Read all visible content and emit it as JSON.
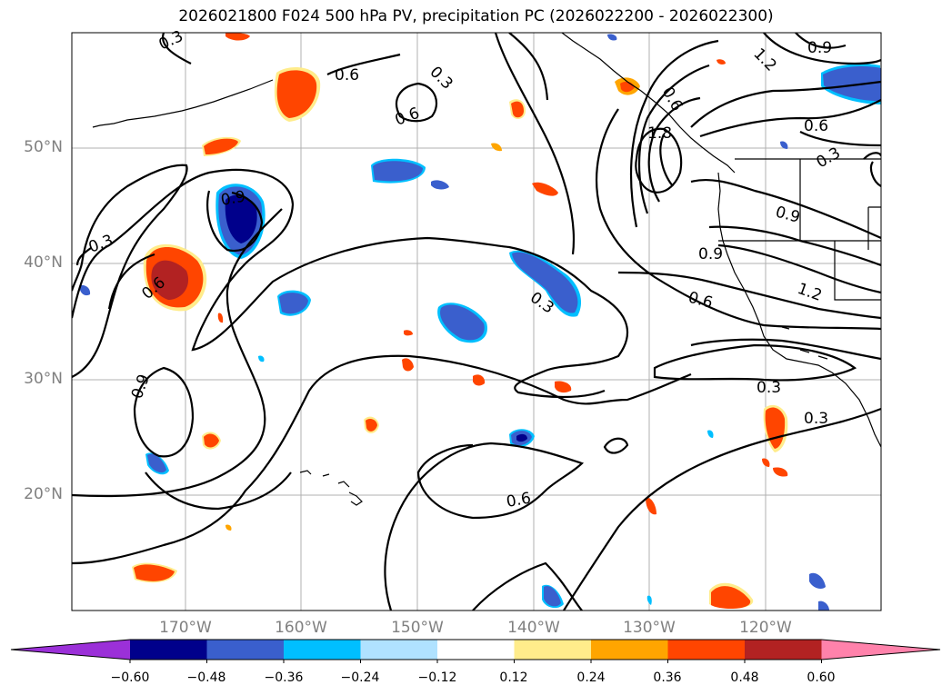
{
  "title": "2026021800 F024 500 hPa PV, precipitation PC (2026022200 - 2026022300)",
  "lat_labels": [
    "50°N",
    "40°N",
    "30°N",
    "20°N"
  ],
  "lon_labels": [
    "170°W",
    "160°W",
    "150°W",
    "140°W",
    "130°W",
    "120°W"
  ],
  "contour_labels": [
    "0.3",
    "0.6",
    "0.3",
    "0.6",
    "0.6",
    "0.9",
    "0.3",
    "0.6",
    "0.9",
    "1.8",
    "1.2",
    "0.6",
    "0.3",
    "0.9",
    "0.9",
    "0.6",
    "1.2",
    "0.3",
    "0.3",
    "0.3",
    "0.6",
    "0.9"
  ],
  "colorbar": {
    "ticks": [
      "−0.60",
      "−0.48",
      "−0.36",
      "−0.24",
      "−0.12",
      "0.12",
      "0.24",
      "0.36",
      "0.48",
      "0.60"
    ],
    "colors": [
      "#9b30d8",
      "#00008b",
      "#3a5fcd",
      "#00bfff",
      "#b0e2ff",
      "#ffffff",
      "#ffec8b",
      "#ffa500",
      "#ff4500",
      "#b22222",
      "#ff82ab"
    ]
  }
}
